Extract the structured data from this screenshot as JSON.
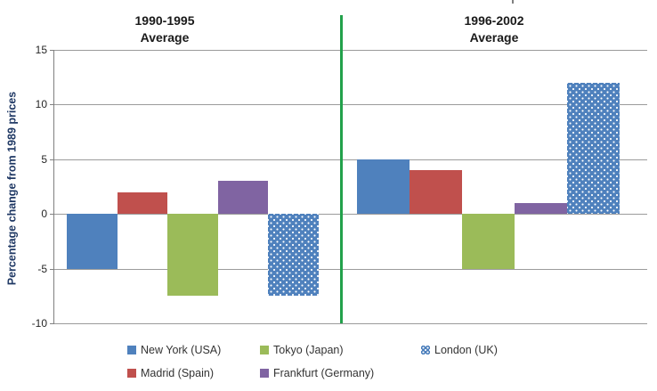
{
  "chart_data": {
    "type": "bar",
    "title": "",
    "ylabel": "Percentage change from 1989 prices",
    "axis": {
      "ymin": -10,
      "ymax": 15,
      "tick_interval": 5,
      "ticks": [
        15,
        10,
        5,
        0,
        -5,
        -10
      ],
      "tick_labels": [
        "15",
        "10",
        "5",
        "0",
        "-5",
        "-10"
      ]
    },
    "grid": true,
    "legend_position": "bottom",
    "groups": [
      {
        "title_line1": "1990-1995",
        "title_line2": "Average"
      },
      {
        "title_line1": "1996-2002",
        "title_line2": "Average"
      }
    ],
    "series": [
      {
        "name": "New York (USA)",
        "color": "#4F81BD",
        "pattern": "solid",
        "values": [
          -5,
          5
        ]
      },
      {
        "name": "Madrid (Spain)",
        "color": "#C0504D",
        "pattern": "solid",
        "values": [
          2,
          4
        ]
      },
      {
        "name": "Tokyo (Japan)",
        "color": "#9BBB59",
        "pattern": "solid",
        "values": [
          -7.5,
          -5
        ]
      },
      {
        "name": "Frankfurt (Germany)",
        "color": "#8064A2",
        "pattern": "solid",
        "values": [
          3,
          1
        ]
      },
      {
        "name": "London (UK)",
        "color": "#4F81BD",
        "pattern": "dotted",
        "values": [
          -7.5,
          12
        ]
      }
    ],
    "legend_order": [
      [
        0,
        2,
        4
      ],
      [
        1,
        3
      ]
    ],
    "divider_color": "#22A14B",
    "gridline_color": "#9B9B9B"
  }
}
